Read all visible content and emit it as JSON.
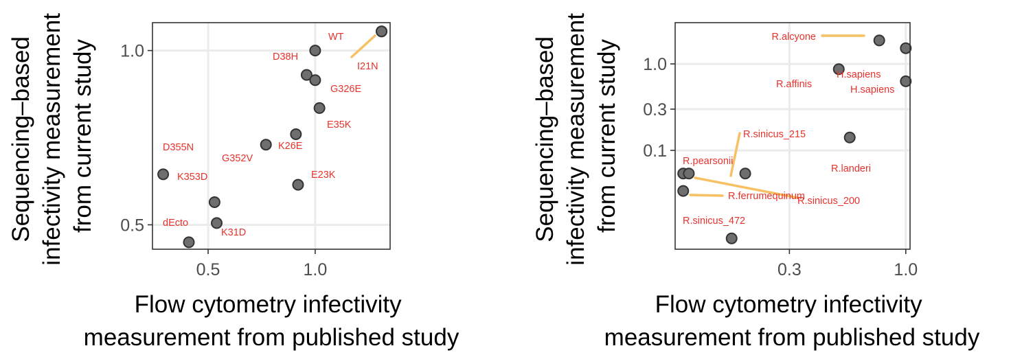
{
  "chart_data": [
    {
      "type": "scatter",
      "xlabel": "Flow cytometry infectivity measurement from published study",
      "ylabel": "Sequencing–based infectivity measurement from current study",
      "xscale": "linear",
      "yscale": "linear",
      "xlim": [
        0.24,
        1.35
      ],
      "ylim": [
        0.43,
        1.08
      ],
      "xticks": [
        0.5,
        1.0
      ],
      "xtick_labels": [
        "0.5",
        "1.0"
      ],
      "yticks": [
        0.5,
        1.0
      ],
      "ytick_labels": [
        "0.5",
        "1.0"
      ],
      "grid": true,
      "legend": "none",
      "points": [
        {
          "label": "WT",
          "x": 1.31,
          "y": 1.055
        },
        {
          "label": "I21N",
          "x": 1.31,
          "y": 1.055
        },
        {
          "label": "D38H",
          "x": 1.0,
          "y": 1.0
        },
        {
          "label": "",
          "x": 0.96,
          "y": 0.93
        },
        {
          "label": "G326E",
          "x": 1.0,
          "y": 0.915
        },
        {
          "label": "E35K",
          "x": 1.02,
          "y": 0.835
        },
        {
          "label": "K26E",
          "x": 0.91,
          "y": 0.76
        },
        {
          "label": "G352V",
          "x": 0.77,
          "y": 0.73
        },
        {
          "label": "D355N",
          "x": 0.29,
          "y": 0.645
        },
        {
          "label": "E23K",
          "x": 0.92,
          "y": 0.615
        },
        {
          "label": "K353D",
          "x": 0.53,
          "y": 0.565
        },
        {
          "label": "K31D",
          "x": 0.54,
          "y": 0.505
        },
        {
          "label": "dEcto",
          "x": 0.41,
          "y": 0.45
        }
      ]
    },
    {
      "type": "scatter",
      "xlabel": "Flow cytometry infectivity measurement from published study",
      "ylabel": "Sequencing–based infectivity measurement from current study",
      "xscale": "log",
      "yscale": "log",
      "xlim": [
        0.092,
        1.045
      ],
      "ylim": [
        0.0072,
        3.0
      ],
      "xticks": [
        0.3,
        1.0
      ],
      "xtick_labels": [
        "0.3",
        "1.0"
      ],
      "yticks": [
        0.1,
        0.3,
        1.0
      ],
      "ytick_labels": [
        "0.1",
        "0.3",
        "1.0"
      ],
      "grid": true,
      "legend": "none",
      "points": [
        {
          "label": "R.alcyone",
          "x": 0.76,
          "y": 1.87
        },
        {
          "label": "H.sapiens",
          "x": 1.0,
          "y": 1.52
        },
        {
          "label": "R.affinis",
          "x": 0.5,
          "y": 0.87
        },
        {
          "label": "H.sapiens",
          "x": 1.0,
          "y": 0.63
        },
        {
          "label": "R.landeri",
          "x": 0.56,
          "y": 0.141
        },
        {
          "label": "R.sinicus_215",
          "x": 0.19,
          "y": 0.054
        },
        {
          "label": "R.pearsonii",
          "x": 0.1,
          "y": 0.054
        },
        {
          "label": "R.sinicus_200",
          "x": 0.106,
          "y": 0.054
        },
        {
          "label": "R.ferrumequinum",
          "x": 0.1,
          "y": 0.034
        },
        {
          "label": "R.sinicus_472",
          "x": 0.165,
          "y": 0.0096
        }
      ]
    }
  ]
}
